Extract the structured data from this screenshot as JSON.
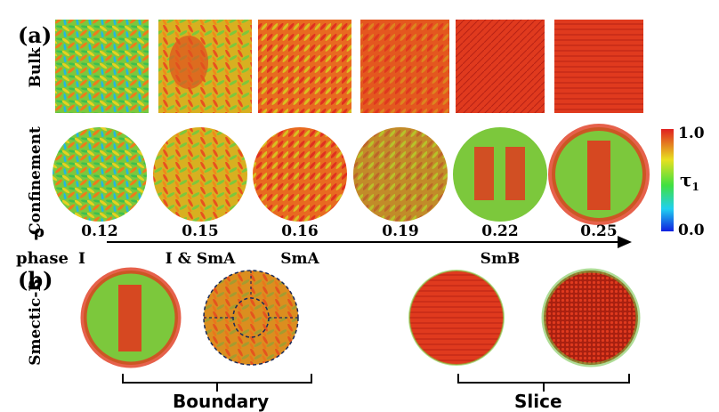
{
  "figure": {
    "panel_a": "(a)",
    "panel_b": "(b)",
    "row_bulk": "Bulk",
    "row_confinement": "Confinement",
    "row_smectic_b": "Smectic-B",
    "rho_label": "ρ",
    "phase_label": "phase",
    "rho_values": [
      "0.12",
      "0.15",
      "0.16",
      "0.19",
      "0.22",
      "0.25"
    ],
    "phases": [
      "I",
      "I & SmA",
      "SmA",
      "SmB"
    ],
    "colorbar": {
      "max": "1.0",
      "min": "0.0",
      "symbol": "τ",
      "subscript": "1"
    },
    "b_groups": [
      "Boundary",
      "Slice"
    ]
  },
  "colors": {
    "red": "#e0301e",
    "orange": "#f07a1a",
    "yellow": "#e8e020",
    "green": "#5cc83c",
    "cyan": "#22c8e0",
    "blue": "#2040e0"
  }
}
